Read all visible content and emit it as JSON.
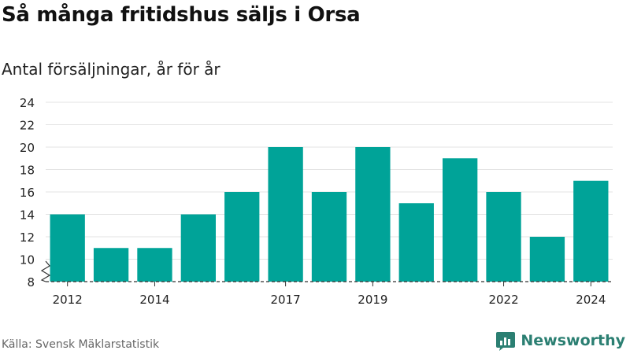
{
  "header": {
    "title": "Så många fritidshus säljs i Orsa",
    "subtitle": "Antal försäljningar, år för år"
  },
  "footer": {
    "source": "Källa: Svensk Mäklarstatistik",
    "brand": "Newsworthy"
  },
  "colors": {
    "bar": "#00a398",
    "brand": "#2b7f72",
    "grid": "#e3e3e3"
  },
  "chart_data": {
    "type": "bar",
    "categories": [
      "2012",
      "2013",
      "2014",
      "2015",
      "2016",
      "2017",
      "2018",
      "2019",
      "2020",
      "2021",
      "2022",
      "2023",
      "2024"
    ],
    "series": [
      {
        "values": [
          14,
          11,
          11,
          14,
          16,
          20,
          16,
          20,
          15,
          19,
          16,
          12,
          17
        ]
      }
    ],
    "x_tick_labels": [
      "2012",
      "",
      "2014",
      "",
      "",
      "2017",
      "",
      "2019",
      "",
      "",
      "2022",
      "",
      "2024"
    ],
    "y_ticks": [
      8,
      10,
      12,
      14,
      16,
      18,
      20,
      22,
      24
    ],
    "ylim": [
      8,
      24
    ],
    "axis_break": true,
    "grid": true,
    "legend": "none"
  }
}
